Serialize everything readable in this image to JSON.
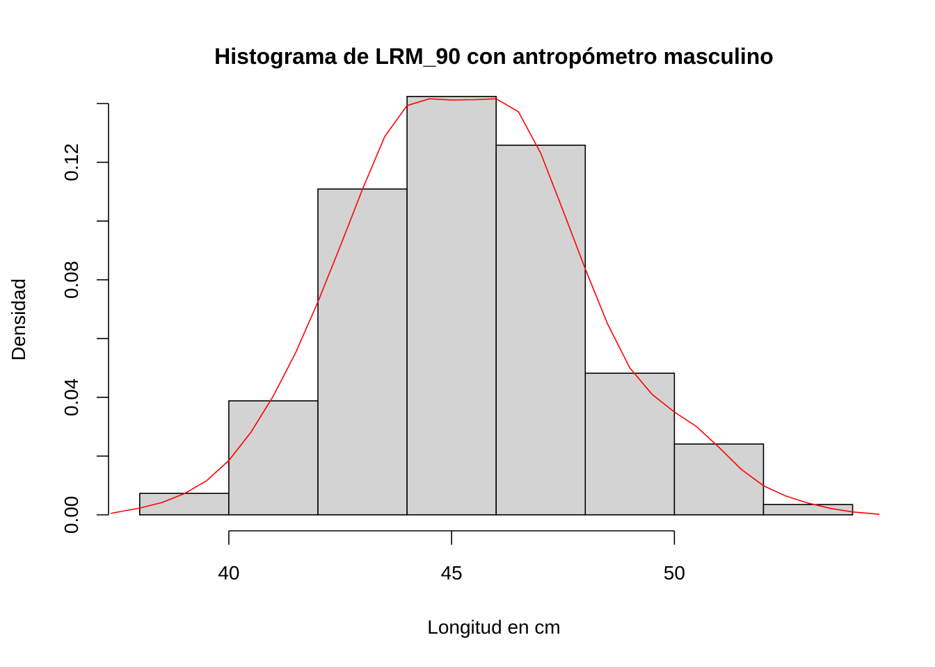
{
  "chart_data": {
    "type": "bar",
    "subtype": "histogram",
    "title": "Histograma de LRM_90 con antropómetro masculino",
    "xlabel": "Longitud en cm",
    "ylabel": "Densidad",
    "xlim": [
      37.3,
      54.6
    ],
    "ylim": [
      0,
      0.14
    ],
    "x_ticks": [
      40,
      45,
      50
    ],
    "x_tick_labels": [
      "40",
      "45",
      "50"
    ],
    "y_ticks": [
      0.0,
      0.02,
      0.04,
      0.06,
      0.08,
      0.1,
      0.12,
      0.14
    ],
    "y_tick_labels": [
      "0.00",
      "",
      "0.04",
      "",
      "0.08",
      "",
      "0.12",
      ""
    ],
    "bins": [
      {
        "start": 38,
        "end": 40,
        "density": 0.0073
      },
      {
        "start": 40,
        "end": 42,
        "density": 0.0388
      },
      {
        "start": 42,
        "end": 44,
        "density": 0.1109
      },
      {
        "start": 44,
        "end": 46,
        "density": 0.1424
      },
      {
        "start": 46,
        "end": 48,
        "density": 0.1258
      },
      {
        "start": 48,
        "end": 50,
        "density": 0.0482
      },
      {
        "start": 50,
        "end": 52,
        "density": 0.0241
      },
      {
        "start": 52,
        "end": 54,
        "density": 0.0035
      }
    ],
    "density_curve": {
      "x": [
        37.35,
        38,
        38.5,
        39,
        39.5,
        40,
        40.5,
        41,
        41.5,
        42,
        42.5,
        43,
        43.5,
        44,
        44.5,
        45,
        45.5,
        46,
        46.5,
        47,
        47.5,
        48,
        48.5,
        49,
        49.5,
        50,
        50.5,
        51,
        51.5,
        52,
        52.5,
        53,
        53.5,
        54,
        54.6
      ],
      "y": [
        0.0005,
        0.0023,
        0.0042,
        0.0072,
        0.0116,
        0.0185,
        0.0282,
        0.0405,
        0.0552,
        0.0725,
        0.0914,
        0.1108,
        0.1288,
        0.1393,
        0.1416,
        0.1412,
        0.1413,
        0.1416,
        0.1372,
        0.1231,
        0.1036,
        0.0837,
        0.065,
        0.05,
        0.041,
        0.035,
        0.03,
        0.023,
        0.0155,
        0.0099,
        0.0064,
        0.004,
        0.0022,
        0.001,
        0.0002
      ]
    },
    "bar_fill": "#d3d3d3",
    "bar_stroke": "#000000",
    "curve_color": "#ff0000",
    "grid": false,
    "legend": "none"
  }
}
